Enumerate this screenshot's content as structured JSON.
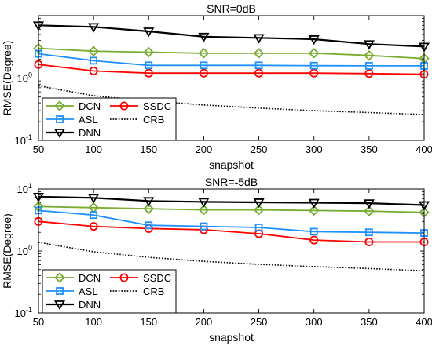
{
  "chart_data": [
    {
      "type": "line",
      "title": "SNR=0dB",
      "xlabel": "snapshot",
      "ylabel": "RMSE(Degree)",
      "yscale": "log",
      "xlim": [
        50,
        400
      ],
      "ylim": [
        0.1,
        10
      ],
      "x": [
        50,
        100,
        150,
        200,
        250,
        300,
        350,
        400
      ],
      "x_tick_labels": [
        "50",
        "100",
        "150",
        "200",
        "250",
        "300",
        "350",
        "400"
      ],
      "y_ticks": [
        {
          "value": 0.1,
          "base": "10",
          "exp": "-1"
        },
        {
          "value": 1,
          "base": "10",
          "exp": "0"
        }
      ],
      "legend_position": "bottom-left",
      "series": [
        {
          "name": "DCN",
          "color": "#77ac30",
          "marker": "diamond",
          "dash": "solid",
          "values": [
            3.0,
            2.7,
            2.6,
            2.5,
            2.5,
            2.5,
            2.3,
            2.05
          ]
        },
        {
          "name": "SSDC",
          "color": "#ff0000",
          "marker": "circle",
          "dash": "solid",
          "values": [
            1.65,
            1.3,
            1.2,
            1.2,
            1.2,
            1.2,
            1.18,
            1.15
          ]
        },
        {
          "name": "ASL",
          "color": "#1e90ff",
          "marker": "square",
          "dash": "solid",
          "values": [
            2.45,
            1.9,
            1.6,
            1.6,
            1.6,
            1.58,
            1.57,
            1.57
          ]
        },
        {
          "name": "CRB",
          "color": "#000000",
          "marker": "none",
          "dash": "dotted",
          "values": [
            0.75,
            0.52,
            0.43,
            0.37,
            0.33,
            0.3,
            0.28,
            0.26
          ]
        },
        {
          "name": "DNN",
          "color": "#000000",
          "marker": "triangle-down",
          "dash": "solid",
          "values": [
            7.0,
            6.6,
            5.6,
            4.6,
            4.4,
            4.2,
            3.5,
            3.2
          ]
        }
      ]
    },
    {
      "type": "line",
      "title": "SNR=-5dB",
      "xlabel": "snapshot",
      "ylabel": "RMSE(Degree)",
      "yscale": "log",
      "xlim": [
        50,
        400
      ],
      "ylim": [
        0.1,
        10
      ],
      "x": [
        50,
        100,
        150,
        200,
        250,
        300,
        350,
        400
      ],
      "x_tick_labels": [
        "50",
        "100",
        "150",
        "200",
        "250",
        "300",
        "350",
        "400"
      ],
      "y_ticks": [
        {
          "value": 0.1,
          "base": "10",
          "exp": "-1"
        },
        {
          "value": 1,
          "base": "10",
          "exp": "0"
        },
        {
          "value": 10,
          "base": "10",
          "exp": "1"
        }
      ],
      "legend_position": "bottom-left",
      "series": [
        {
          "name": "DCN",
          "color": "#77ac30",
          "marker": "diamond",
          "dash": "solid",
          "values": [
            5.2,
            5.0,
            4.8,
            4.6,
            4.6,
            4.5,
            4.4,
            4.2
          ]
        },
        {
          "name": "SSDC",
          "color": "#ff0000",
          "marker": "circle",
          "dash": "solid",
          "values": [
            3.0,
            2.5,
            2.3,
            2.2,
            1.9,
            1.5,
            1.4,
            1.4
          ]
        },
        {
          "name": "ASL",
          "color": "#1e90ff",
          "marker": "square",
          "dash": "solid",
          "values": [
            4.5,
            3.8,
            2.6,
            2.5,
            2.4,
            2.05,
            2.0,
            1.95
          ]
        },
        {
          "name": "CRB",
          "color": "#000000",
          "marker": "none",
          "dash": "dotted",
          "values": [
            1.38,
            0.97,
            0.79,
            0.68,
            0.61,
            0.56,
            0.52,
            0.48
          ]
        },
        {
          "name": "DNN",
          "color": "#000000",
          "marker": "triangle-down",
          "dash": "solid",
          "values": [
            7.5,
            7.2,
            6.4,
            6.2,
            6.1,
            6.0,
            5.9,
            5.5
          ]
        }
      ]
    }
  ]
}
